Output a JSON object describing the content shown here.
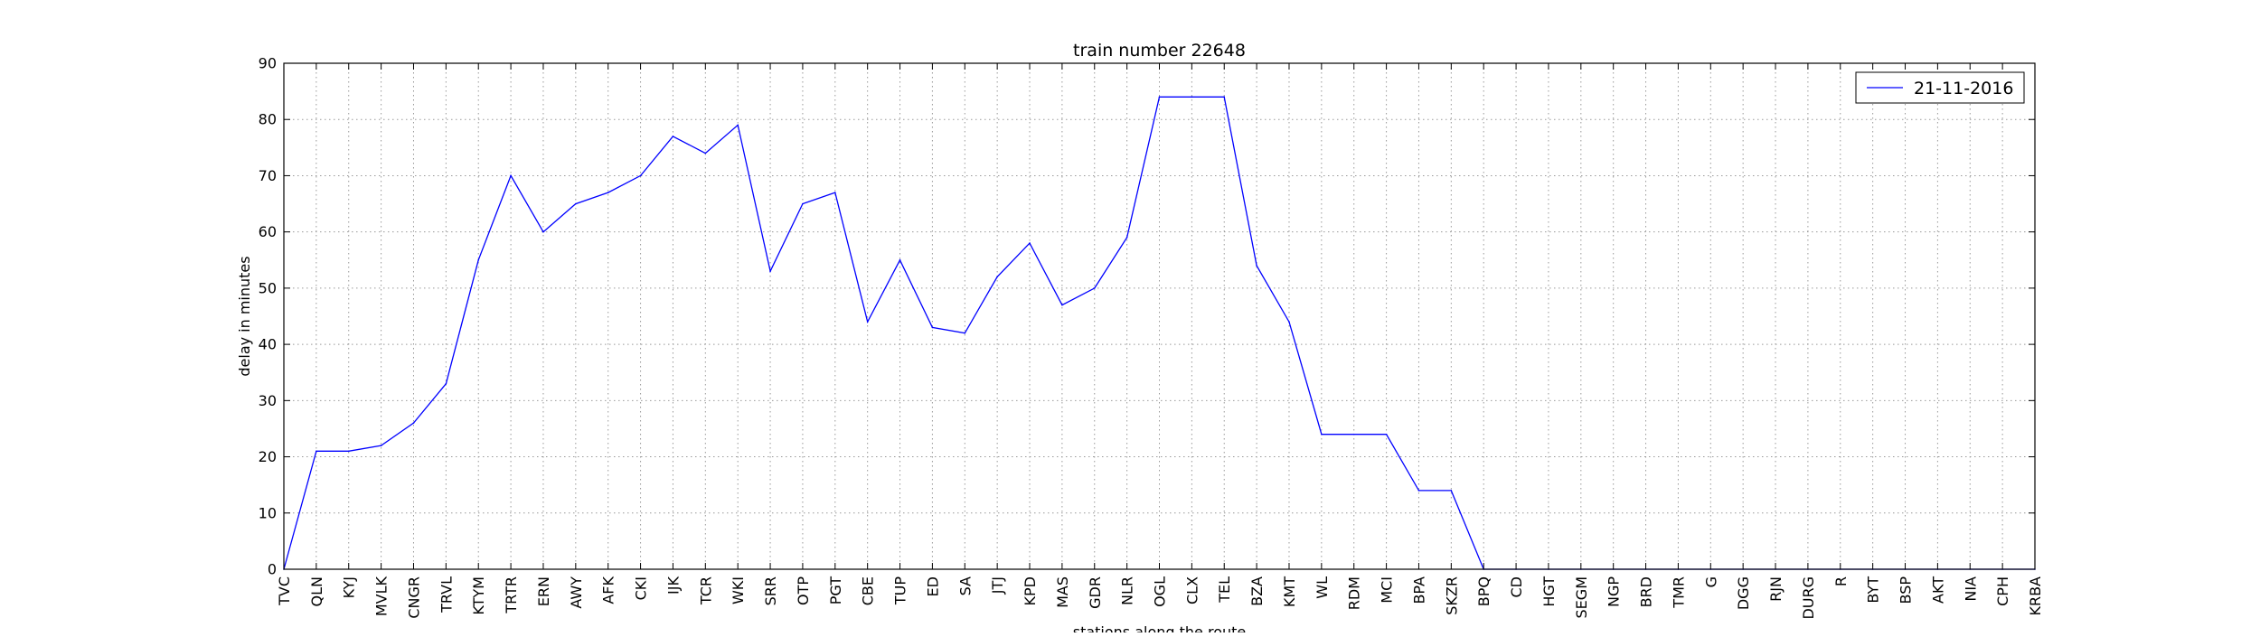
{
  "chart_data": {
    "type": "line",
    "title": "train number 22648",
    "xlabel": "stations along the route",
    "ylabel": "delay in minutes",
    "ylim": [
      0,
      90
    ],
    "yticks": [
      0,
      10,
      20,
      30,
      40,
      50,
      60,
      70,
      80,
      90
    ],
    "grid": true,
    "legend_position": "top-right",
    "categories": [
      "TVC",
      "QLN",
      "KYJ",
      "MVLK",
      "CNGR",
      "TRVL",
      "KTYM",
      "TRTR",
      "ERN",
      "AWY",
      "AFK",
      "CKI",
      "IJK",
      "TCR",
      "WKI",
      "SRR",
      "OTP",
      "PGT",
      "CBE",
      "TUP",
      "ED",
      "SA",
      "JTJ",
      "KPD",
      "MAS",
      "GDR",
      "NLR",
      "OGL",
      "CLX",
      "TEL",
      "BZA",
      "KMT",
      "WL",
      "RDM",
      "MCI",
      "BPA",
      "SKZR",
      "BPQ",
      "CD",
      "HGT",
      "SEGM",
      "NGP",
      "BRD",
      "TMR",
      "G",
      "DGG",
      "RJN",
      "DURG",
      "R",
      "BYT",
      "BSP",
      "AKT",
      "NIA",
      "CPH",
      "KRBA"
    ],
    "series": [
      {
        "name": "21-11-2016",
        "color": "#0000ff",
        "values": [
          0,
          21,
          21,
          22,
          26,
          33,
          55,
          70,
          60,
          65,
          67,
          70,
          77,
          74,
          79,
          53,
          65,
          67,
          44,
          55,
          43,
          42,
          52,
          58,
          47,
          50,
          59,
          84,
          84,
          84,
          54,
          44,
          24,
          24,
          24,
          14,
          14,
          0,
          0,
          0,
          0,
          0,
          0,
          0,
          0,
          0,
          0,
          0,
          0,
          0,
          0,
          0,
          0,
          0,
          0
        ]
      }
    ]
  }
}
